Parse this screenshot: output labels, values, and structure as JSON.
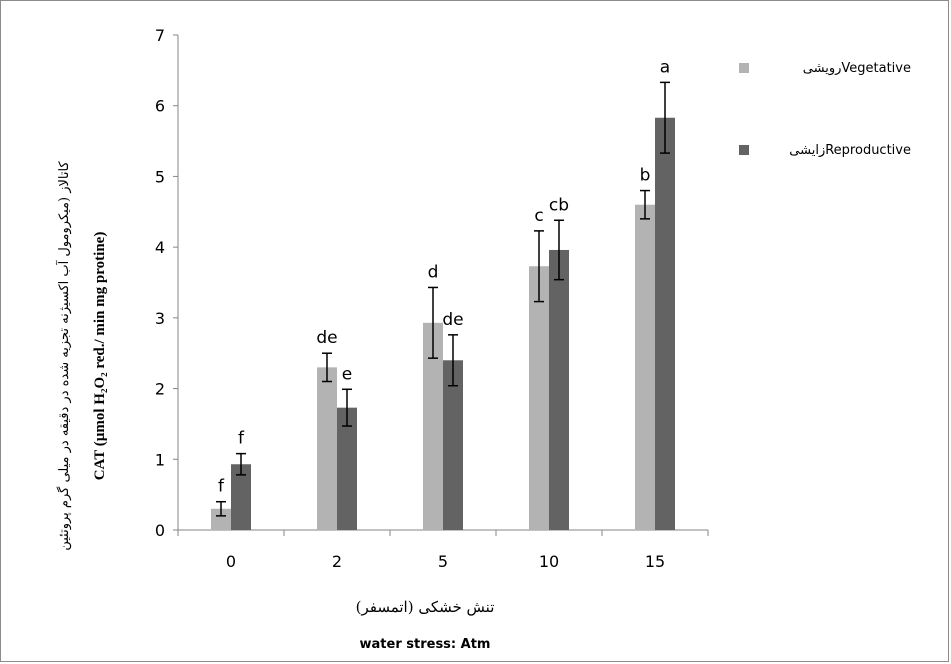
{
  "chart_data": {
    "type": "bar",
    "categories": [
      "0",
      "2",
      "5",
      "10",
      "15"
    ],
    "series": [
      {
        "name": "رویشیVegetative",
        "color": "#b3b3b3",
        "values": [
          0.3,
          2.3,
          2.93,
          3.73,
          4.6
        ],
        "errors": [
          0.1,
          0.2,
          0.5,
          0.5,
          0.2
        ],
        "labels": [
          "f",
          "de",
          "d",
          "c",
          "b"
        ]
      },
      {
        "name": "زایشیReproductive",
        "color": "#636363",
        "values": [
          0.93,
          1.73,
          2.4,
          3.96,
          5.83
        ],
        "errors": [
          0.15,
          0.26,
          0.36,
          0.42,
          0.5
        ],
        "labels": [
          "f",
          "e",
          "de",
          "cb",
          "a"
        ]
      }
    ],
    "ylim": [
      0,
      7
    ],
    "yticks": [
      "0",
      "1",
      "2",
      "3",
      "4",
      "5",
      "6",
      "7"
    ],
    "ylabel_fa": "کاتالاز (میکرومول آب اکسیژنه تجزیه شده در دقیقه در میلی گرم پروتئین",
    "ylabel_en": "CAT (µmol H₂O₂ red./ min mg protine)",
    "xlabel_fa": "تنش خشکی (اتمسفر)",
    "xlabel_en": "water stress: Atm",
    "legend_position": "right",
    "grid": false
  }
}
